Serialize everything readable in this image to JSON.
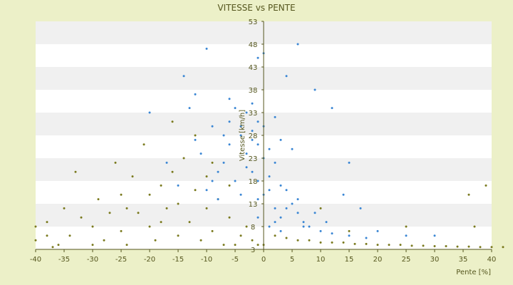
{
  "chart_data": {
    "type": "scatter",
    "title": "VITESSE vs PENTE",
    "xlabel": "Pente [%]",
    "ylabel": "Vitesse [km/h]",
    "xlim": [
      -40,
      40
    ],
    "ylim": [
      3,
      53
    ],
    "x_ticks": [
      "-40",
      "-35",
      "-30",
      "-25",
      "-20",
      "-15",
      "-10",
      "-5",
      "0",
      "5",
      "10",
      "15",
      "20",
      "25",
      "30",
      "35",
      "40"
    ],
    "y_ticks": [
      "3",
      "8",
      "13",
      "18",
      "23",
      "28",
      "33",
      "38",
      "43",
      "48",
      "53"
    ],
    "grid": "horizontal bands",
    "legend": "none",
    "colors": {
      "background": "#ecf0c8",
      "band_light": "#ffffff",
      "band_dark": "#f0f0f0",
      "axis": "#55561e",
      "series_blue": "#3a86d4",
      "series_olive": "#7a7a1e"
    },
    "series": [
      {
        "color": "#3a86d4",
        "points": [
          [
            -10,
            47
          ],
          [
            6,
            48
          ],
          [
            0,
            46
          ],
          [
            -1,
            45
          ],
          [
            -14,
            41
          ],
          [
            4,
            41
          ],
          [
            9,
            38
          ],
          [
            -12,
            37
          ],
          [
            -6,
            36
          ],
          [
            -5,
            34
          ],
          [
            -3,
            33
          ],
          [
            -2,
            35
          ],
          [
            -1,
            31
          ],
          [
            -13,
            34
          ],
          [
            0,
            30
          ],
          [
            -2,
            29
          ],
          [
            -4,
            28
          ],
          [
            -1,
            26
          ],
          [
            1,
            25
          ],
          [
            -3,
            24
          ],
          [
            0,
            23
          ],
          [
            2,
            22
          ],
          [
            -2,
            20
          ],
          [
            1,
            19
          ],
          [
            -1,
            18
          ],
          [
            3,
            17
          ],
          [
            4,
            16
          ],
          [
            0,
            15
          ],
          [
            -1,
            14
          ],
          [
            5,
            13
          ],
          [
            2,
            12
          ],
          [
            6,
            11
          ],
          [
            3,
            10
          ],
          [
            7,
            9
          ],
          [
            8,
            8
          ],
          [
            10,
            7
          ],
          [
            12,
            6.5
          ],
          [
            15,
            6
          ],
          [
            18,
            5.5
          ],
          [
            -6,
            26
          ],
          [
            -7,
            22
          ],
          [
            -8,
            20
          ],
          [
            -9,
            18
          ],
          [
            -10,
            16
          ],
          [
            -8,
            14
          ],
          [
            12,
            34
          ],
          [
            15,
            22
          ],
          [
            17,
            12
          ],
          [
            -20,
            33
          ],
          [
            -15,
            17
          ],
          [
            -12,
            27
          ],
          [
            -17,
            22
          ],
          [
            -11,
            24
          ],
          [
            -5,
            18
          ],
          [
            -4,
            15
          ],
          [
            1,
            16
          ],
          [
            2,
            9
          ],
          [
            4,
            12
          ],
          [
            6,
            14
          ],
          [
            9,
            11
          ],
          [
            14,
            15
          ],
          [
            -3,
            21
          ],
          [
            -2,
            27
          ],
          [
            -4,
            30
          ],
          [
            -6,
            31
          ],
          [
            -7,
            28
          ],
          [
            -9,
            30
          ],
          [
            3,
            27
          ],
          [
            5,
            25
          ],
          [
            2,
            32
          ],
          [
            1,
            8
          ],
          [
            -1,
            10
          ],
          [
            3,
            7
          ],
          [
            7,
            8
          ],
          [
            11,
            9
          ],
          [
            20,
            7
          ],
          [
            25,
            6
          ],
          [
            30,
            6
          ]
        ]
      },
      {
        "color": "#7a7a1e",
        "points": [
          [
            -40,
            8
          ],
          [
            -40,
            5
          ],
          [
            -38,
            6
          ],
          [
            -36,
            4
          ],
          [
            -35,
            12
          ],
          [
            -34,
            6
          ],
          [
            -32,
            10
          ],
          [
            -30,
            4
          ],
          [
            -30,
            8
          ],
          [
            -29,
            14
          ],
          [
            -28,
            5
          ],
          [
            -27,
            11
          ],
          [
            -26,
            22
          ],
          [
            -25,
            7
          ],
          [
            -25,
            15
          ],
          [
            -24,
            4
          ],
          [
            -23,
            19
          ],
          [
            -22,
            11
          ],
          [
            -21,
            26
          ],
          [
            -20,
            8
          ],
          [
            -20,
            15
          ],
          [
            -19,
            5
          ],
          [
            -18,
            17
          ],
          [
            -17,
            12
          ],
          [
            -16,
            20
          ],
          [
            -15,
            6
          ],
          [
            -15,
            13
          ],
          [
            -14,
            23
          ],
          [
            -13,
            9
          ],
          [
            -12,
            16
          ],
          [
            -11,
            5
          ],
          [
            -10,
            12
          ],
          [
            -10,
            19
          ],
          [
            -9,
            7
          ],
          [
            -8,
            14
          ],
          [
            -7,
            4
          ],
          [
            -6,
            10
          ],
          [
            -5,
            4
          ],
          [
            -4,
            6
          ],
          [
            -3,
            8
          ],
          [
            -2,
            5
          ],
          [
            -1,
            4
          ],
          [
            0,
            4
          ],
          [
            2,
            6
          ],
          [
            4,
            5.5
          ],
          [
            6,
            5
          ],
          [
            8,
            5
          ],
          [
            10,
            4.5
          ],
          [
            12,
            4.5
          ],
          [
            14,
            4.5
          ],
          [
            16,
            4.2
          ],
          [
            18,
            4.2
          ],
          [
            20,
            4
          ],
          [
            22,
            4
          ],
          [
            24,
            4
          ],
          [
            26,
            3.8
          ],
          [
            28,
            3.8
          ],
          [
            30,
            3.7
          ],
          [
            32,
            3.7
          ],
          [
            34,
            3.6
          ],
          [
            36,
            3.6
          ],
          [
            38,
            3.5
          ],
          [
            40,
            3.5
          ],
          [
            42,
            3.5
          ],
          [
            36,
            15
          ],
          [
            39,
            17
          ],
          [
            37,
            8
          ],
          [
            25,
            8
          ],
          [
            15,
            7
          ],
          [
            10,
            12
          ],
          [
            -33,
            20
          ],
          [
            -38,
            9
          ],
          [
            -37,
            3.5
          ],
          [
            -24,
            12
          ],
          [
            -18,
            9
          ],
          [
            -9,
            22
          ],
          [
            -6,
            17
          ],
          [
            -12,
            28
          ],
          [
            -16,
            31
          ]
        ]
      }
    ]
  }
}
